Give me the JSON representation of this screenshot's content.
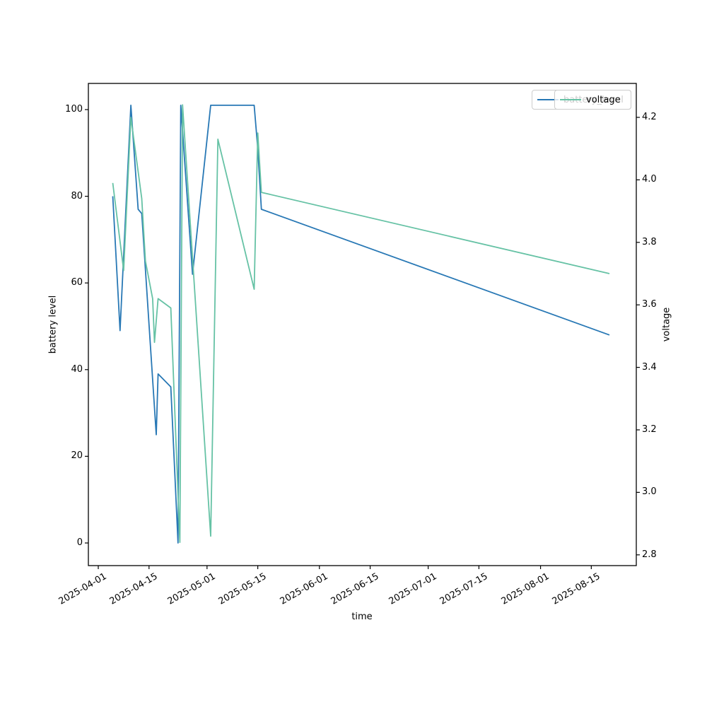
{
  "axes": {
    "xlabel": "time",
    "ylabel_left": "battery level",
    "ylabel_right": "voltage",
    "x_tick_labels": [
      "2025-04-01",
      "2025-04-15",
      "2025-05-01",
      "2025-05-15",
      "2025-06-01",
      "2025-06-15",
      "2025-07-01",
      "2025-07-15",
      "2025-08-01",
      "2025-08-15"
    ],
    "y_left_tick_labels": [
      "0",
      "20",
      "40",
      "60",
      "80",
      "100"
    ],
    "y_right_tick_labels": [
      "2.8",
      "3.0",
      "3.2",
      "3.4",
      "3.6",
      "3.8",
      "4.0",
      "4.2"
    ]
  },
  "legend": {
    "back": {
      "label": "battery_level",
      "color": "#2878b5"
    },
    "front": {
      "label": "voltage",
      "color": "#66c2a5"
    }
  },
  "chart_data": {
    "type": "line",
    "title": "",
    "xlabel": "time",
    "ylabel_left": "battery level",
    "ylabel_right": "voltage",
    "x_range_visible": [
      "2025-03-29",
      "2025-08-27"
    ],
    "ylim_left": [
      -5,
      106
    ],
    "ylim_right": [
      2.77,
      4.31
    ],
    "grid": false,
    "legend_position": "upper right",
    "series": [
      {
        "name": "battery_level",
        "axis": "left",
        "color": "#2878b5",
        "points": [
          [
            "2025-04-05",
            80
          ],
          [
            "2025-04-07",
            49
          ],
          [
            "2025-04-10",
            101
          ],
          [
            "2025-04-12",
            77
          ],
          [
            "2025-04-13",
            76
          ],
          [
            "2025-04-17",
            25
          ],
          [
            "2025-04-17T12:00",
            39
          ],
          [
            "2025-04-21",
            36
          ],
          [
            "2025-04-23",
            0
          ],
          [
            "2025-04-23T18:00",
            101
          ],
          [
            "2025-04-27",
            62
          ],
          [
            "2025-05-02",
            101
          ],
          [
            "2025-05-14",
            101
          ],
          [
            "2025-05-15",
            91
          ],
          [
            "2025-05-16",
            77
          ],
          [
            "2025-08-20",
            48
          ]
        ]
      },
      {
        "name": "voltage",
        "axis": "right",
        "color": "#66c2a5",
        "points": [
          [
            "2025-04-05",
            3.99
          ],
          [
            "2025-04-08",
            3.71
          ],
          [
            "2025-04-10",
            4.2
          ],
          [
            "2025-04-13",
            3.94
          ],
          [
            "2025-04-14",
            3.74
          ],
          [
            "2025-04-16",
            3.62
          ],
          [
            "2025-04-16T12:00",
            3.48
          ],
          [
            "2025-04-17T12:00",
            3.62
          ],
          [
            "2025-04-21",
            3.59
          ],
          [
            "2025-04-23T12:00",
            2.84
          ],
          [
            "2025-04-24T06:00",
            4.24
          ],
          [
            "2025-05-02",
            2.86
          ],
          [
            "2025-05-04",
            4.13
          ],
          [
            "2025-05-14",
            3.65
          ],
          [
            "2025-05-15",
            4.15
          ],
          [
            "2025-05-16",
            3.96
          ],
          [
            "2025-08-20",
            3.7
          ]
        ]
      }
    ]
  }
}
